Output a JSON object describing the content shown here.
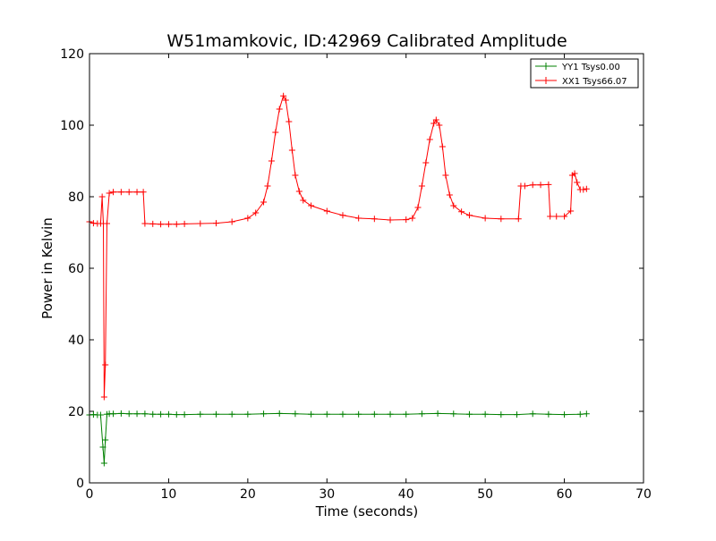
{
  "chart_data": {
    "type": "line",
    "title": "W51mamkovic, ID:42969 Calibrated Amplitude",
    "xlabel": "Time (seconds)",
    "ylabel": "Power in Kelvin",
    "xlim": [
      0,
      70
    ],
    "ylim": [
      0,
      120
    ],
    "xticks": [
      0,
      10,
      20,
      30,
      40,
      50,
      60,
      70
    ],
    "yticks": [
      0,
      20,
      40,
      60,
      80,
      100,
      120
    ],
    "xtick_labels": [
      "0",
      "10",
      "20",
      "30",
      "40",
      "50",
      "60",
      "70"
    ],
    "ytick_labels": [
      "0",
      "20",
      "40",
      "60",
      "80",
      "100",
      "120"
    ],
    "grid": false,
    "legend_position": "top-right",
    "marker": "plus",
    "series": [
      {
        "name": "YY1 Tsys0.00",
        "color": "#008000",
        "x": [
          0,
          0.5,
          1.0,
          1.4,
          1.7,
          1.85,
          2.0,
          2.2,
          2.5,
          3,
          4,
          5,
          6,
          7,
          8,
          9,
          10,
          11,
          12,
          14,
          16,
          18,
          20,
          22,
          24,
          26,
          28,
          30,
          32,
          34,
          36,
          38,
          40,
          42,
          44,
          46,
          48,
          50,
          52,
          54,
          56,
          58,
          60,
          62,
          62.8
        ],
        "y": [
          19.0,
          19.1,
          19.0,
          19.0,
          10.0,
          5.5,
          12.0,
          19.2,
          19.3,
          19.3,
          19.4,
          19.3,
          19.3,
          19.3,
          19.2,
          19.2,
          19.2,
          19.1,
          19.1,
          19.2,
          19.2,
          19.2,
          19.2,
          19.3,
          19.4,
          19.3,
          19.2,
          19.2,
          19.2,
          19.2,
          19.2,
          19.2,
          19.2,
          19.3,
          19.4,
          19.3,
          19.2,
          19.2,
          19.1,
          19.1,
          19.3,
          19.2,
          19.1,
          19.2,
          19.3
        ]
      },
      {
        "name": "XX1 Tsys66.07",
        "color": "#ff0000",
        "x": [
          0,
          0.5,
          1.0,
          1.4,
          1.6,
          1.75,
          1.85,
          2.0,
          2.2,
          2.5,
          3,
          4,
          5,
          6,
          6.8,
          7.0,
          8,
          9,
          10,
          11,
          12,
          14,
          16,
          18,
          20,
          21,
          22,
          22.5,
          23,
          23.5,
          24,
          24.5,
          24.8,
          25.2,
          25.6,
          26,
          26.5,
          27,
          28,
          30,
          32,
          34,
          36,
          38,
          40,
          40.8,
          41.5,
          42,
          42.5,
          43,
          43.5,
          43.8,
          44.2,
          44.6,
          45,
          45.5,
          46,
          47,
          48,
          50,
          52,
          54.2,
          54.5,
          55,
          56,
          57,
          58,
          58.2,
          59,
          60,
          60.8,
          61.0,
          61.3,
          61.6,
          62.0,
          62.4,
          62.8
        ],
        "y": [
          73.0,
          72.6,
          72.5,
          72.5,
          80.0,
          72.5,
          24.0,
          33.0,
          72.5,
          81.0,
          81.3,
          81.3,
          81.3,
          81.3,
          81.3,
          72.5,
          72.4,
          72.3,
          72.3,
          72.3,
          72.4,
          72.5,
          72.6,
          73.0,
          74.0,
          75.5,
          78.5,
          83.0,
          90.0,
          98.0,
          104.5,
          108.2,
          107.0,
          101.0,
          93.0,
          86.0,
          81.5,
          79.0,
          77.5,
          76.0,
          74.8,
          74.0,
          73.8,
          73.5,
          73.6,
          74.0,
          77.0,
          83.0,
          89.5,
          96.0,
          100.5,
          101.5,
          100.0,
          94.0,
          86.0,
          80.5,
          77.5,
          75.8,
          74.8,
          74.0,
          73.8,
          73.8,
          83.0,
          83.0,
          83.3,
          83.3,
          83.4,
          74.5,
          74.5,
          74.5,
          76.0,
          86.0,
          86.5,
          84.0,
          82.0,
          82.0,
          82.2
        ]
      }
    ]
  }
}
